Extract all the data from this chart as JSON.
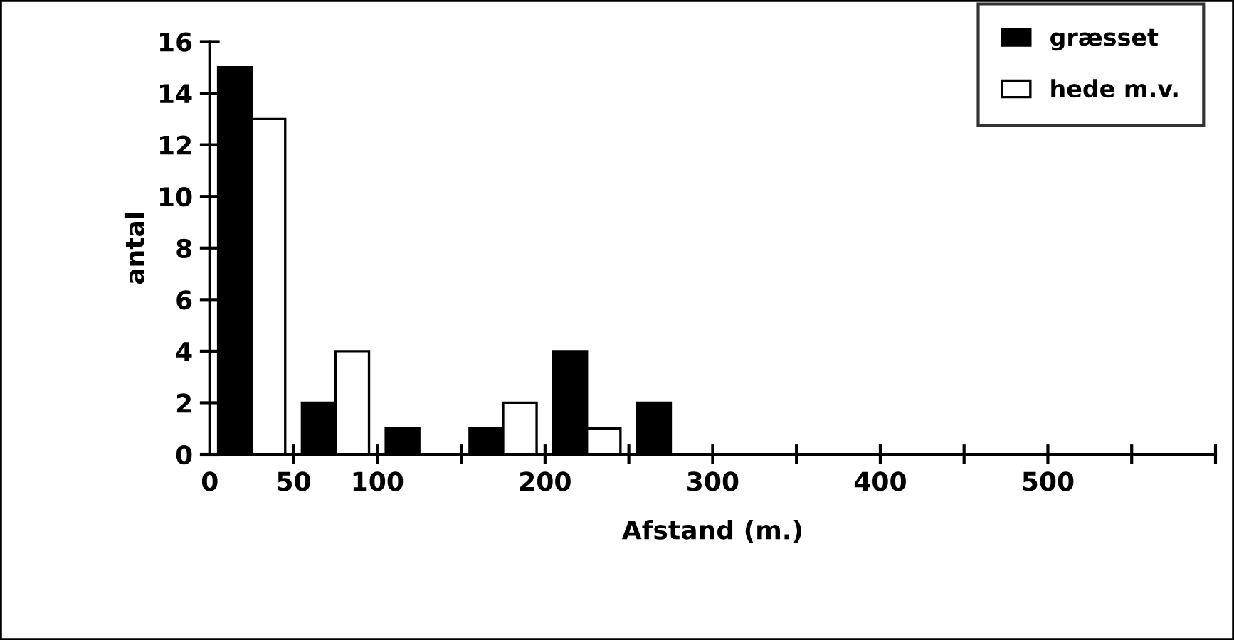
{
  "chart_data": {
    "type": "bar",
    "xlabel": "Afstand (m.)",
    "ylabel": "antal",
    "x": [
      25,
      75,
      125,
      175,
      225,
      275
    ],
    "series": [
      {
        "name": "græsset",
        "color": "#000000",
        "values": [
          15,
          2,
          1,
          1,
          4,
          2
        ]
      },
      {
        "name": "hede m.v.",
        "color": "#ffffff",
        "values": [
          13,
          4,
          0,
          2,
          1,
          0
        ]
      }
    ],
    "xlim": [
      0,
      600
    ],
    "xticks": [
      0,
      50,
      100,
      {
        "value": 150,
        "label": null
      },
      200,
      {
        "value": 250,
        "label": null
      },
      300,
      {
        "value": 350,
        "label": null
      },
      400,
      {
        "value": 450,
        "label": null
      },
      500,
      {
        "value": 550,
        "label": null
      },
      {
        "value": 600,
        "label": null
      }
    ],
    "ylim": [
      0,
      16
    ],
    "yticks": [
      0,
      2,
      4,
      6,
      8,
      10,
      12,
      14,
      16
    ],
    "grid": false,
    "legend": "top right"
  }
}
